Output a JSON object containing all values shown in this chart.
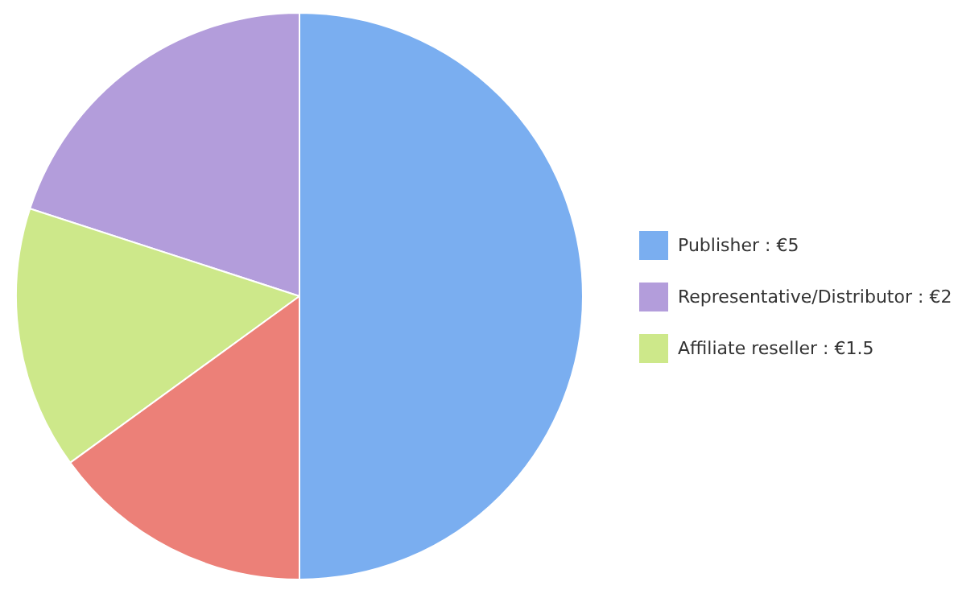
{
  "chart_data": {
    "type": "pie",
    "categories": [
      "Publisher : €5",
      "Representative/Distributor : €2",
      "Affiliate reseller : €1.5",
      null
    ],
    "values": [
      5,
      2,
      1.5,
      1.5
    ],
    "colors": [
      "#7aaef0",
      "#b39ddb",
      "#cde88a",
      "#ec8078"
    ],
    "legend": "right"
  }
}
